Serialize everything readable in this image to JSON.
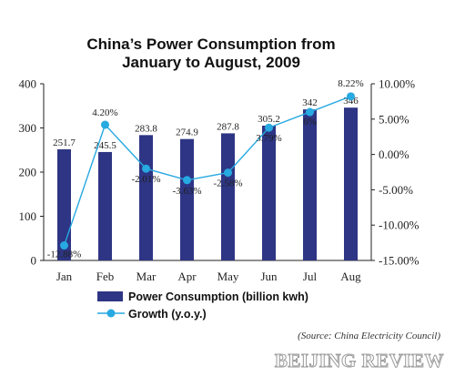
{
  "chart_data": {
    "type": "bar",
    "title_lines": [
      "China’s Power Consumption from",
      "January to August, 2009"
    ],
    "categories": [
      "Jan",
      "Feb",
      "Mar",
      "Apr",
      "May",
      "Jun",
      "Jul",
      "Aug"
    ],
    "series": [
      {
        "name": "Power Consumption (billion kwh)",
        "type": "bar",
        "axis": "left",
        "values": [
          251.7,
          245.5,
          283.8,
          274.9,
          287.8,
          305.2,
          342,
          346
        ],
        "labels": [
          "251.7",
          "245.5",
          "283.8",
          "274.9",
          "287.8",
          "305.2",
          "342",
          "346"
        ],
        "color": "#2e3584"
      },
      {
        "name": "Growth (y.o.y.)",
        "type": "line",
        "axis": "right",
        "values": [
          -12.88,
          4.2,
          -2.01,
          -3.63,
          -2.58,
          3.79,
          6,
          8.22
        ],
        "labels": [
          "-12.88%",
          "4.20%",
          "-2.01%",
          "-3.63%",
          "-2.58%",
          "3.79%",
          "6%",
          "8.22%"
        ],
        "color": "#27a9e1"
      }
    ],
    "y_left": {
      "ylim": [
        0,
        400
      ],
      "ticks": [
        0,
        100,
        200,
        300,
        400
      ],
      "tick_labels": [
        "0",
        "100",
        "200",
        "300",
        "400"
      ]
    },
    "y_right": {
      "ylim": [
        -15,
        10
      ],
      "ticks": [
        10,
        5,
        0,
        -5,
        -10,
        -15
      ],
      "tick_labels": [
        "10.00%",
        "5.00%",
        "0.00%",
        "-5.00%",
        "-10.00%",
        "-15.00%"
      ]
    },
    "grid": false,
    "legend_position": "bottom"
  },
  "source_note": "(Source: China Electricity Council)",
  "brand": "BEIJING REVIEW"
}
